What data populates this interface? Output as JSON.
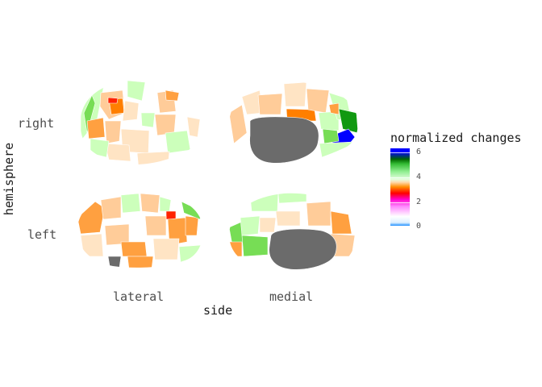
{
  "axes": {
    "y_label": "hemisphere",
    "x_label": "side",
    "rows": [
      "right",
      "left"
    ],
    "columns": [
      "lateral",
      "medial"
    ]
  },
  "legend": {
    "title": "normalized changes",
    "ticks": [
      "6",
      "4",
      "2",
      "0"
    ],
    "colors": [
      "#1e90ff",
      "#ffffff",
      "#ff00cc",
      "#ff0000",
      "#ff8c00",
      "#90ee90",
      "#006400",
      "#0000ff"
    ]
  },
  "colors": {
    "white": "#ffffff",
    "pale_orange": "#ffe4c4",
    "light_orange": "#ffcc99",
    "orange": "#ffa040",
    "dark_orange": "#ff7f00",
    "red": "#ff2200",
    "light_green": "#ccffbb",
    "green": "#77dd55",
    "dark_green": "#119911",
    "blue": "#0000ff",
    "medial_wall": "#6b6b6b"
  }
}
